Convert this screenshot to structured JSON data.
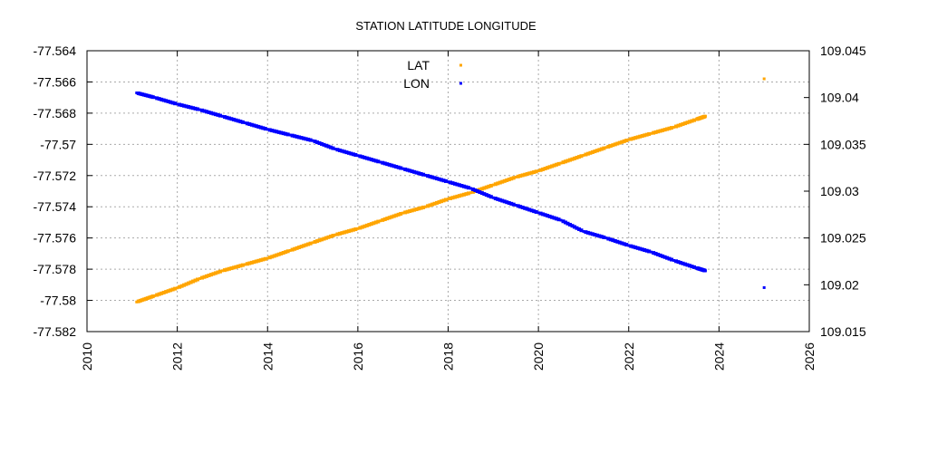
{
  "chart_data": {
    "type": "scatter",
    "title": "STATION LATITUDE LONGITUDE",
    "xlim": [
      2010,
      2026
    ],
    "x_ticks": [
      "2010",
      "2012",
      "2014",
      "2016",
      "2018",
      "2020",
      "2022",
      "2024",
      "2026"
    ],
    "y_left_lim": [
      -77.582,
      -77.564
    ],
    "y_left_ticks": [
      "-77.564",
      "-77.566",
      "-77.568",
      "-77.57",
      "-77.572",
      "-77.574",
      "-77.576",
      "-77.578",
      "-77.58",
      "-77.582"
    ],
    "y_right_lim": [
      109.015,
      109.045
    ],
    "y_right_ticks": [
      "109.045",
      "109.04",
      "109.035",
      "109.03",
      "109.025",
      "109.02",
      "109.015"
    ],
    "grid": true,
    "legend_position": "top-center",
    "series": [
      {
        "name": "LAT",
        "axis": "left",
        "color": "#FFA500",
        "points": [
          [
            2011.1,
            -77.5801
          ],
          [
            2011.5,
            -77.5797
          ],
          [
            2012.0,
            -77.5792
          ],
          [
            2012.5,
            -77.5786
          ],
          [
            2013.0,
            -77.5781
          ],
          [
            2013.5,
            -77.5777
          ],
          [
            2014.0,
            -77.5773
          ],
          [
            2014.5,
            -77.5768
          ],
          [
            2015.0,
            -77.5763
          ],
          [
            2015.5,
            -77.5758
          ],
          [
            2016.0,
            -77.5754
          ],
          [
            2016.5,
            -77.5749
          ],
          [
            2017.0,
            -77.5744
          ],
          [
            2017.5,
            -77.574
          ],
          [
            2018.0,
            -77.5735
          ],
          [
            2018.5,
            -77.5731
          ],
          [
            2019.0,
            -77.5726
          ],
          [
            2019.5,
            -77.5721
          ],
          [
            2020.0,
            -77.5717
          ],
          [
            2020.5,
            -77.5712
          ],
          [
            2021.0,
            -77.5707
          ],
          [
            2021.5,
            -77.5702
          ],
          [
            2022.0,
            -77.5697
          ],
          [
            2022.5,
            -77.5693
          ],
          [
            2023.0,
            -77.5689
          ],
          [
            2023.5,
            -77.5684
          ],
          [
            2023.7,
            -77.5682
          ],
          [
            2025.0,
            -77.5658
          ]
        ]
      },
      {
        "name": "LON",
        "axis": "right",
        "color": "#0000FF",
        "points": [
          [
            2011.1,
            109.0405
          ],
          [
            2011.5,
            109.04
          ],
          [
            2012.0,
            109.0393
          ],
          [
            2012.5,
            109.0387
          ],
          [
            2013.0,
            109.038
          ],
          [
            2013.5,
            109.0373
          ],
          [
            2014.0,
            109.0366
          ],
          [
            2014.5,
            109.036
          ],
          [
            2015.0,
            109.0354
          ],
          [
            2015.5,
            109.0345
          ],
          [
            2016.0,
            109.0338
          ],
          [
            2016.5,
            109.0331
          ],
          [
            2017.0,
            109.0324
          ],
          [
            2017.5,
            109.0317
          ],
          [
            2018.0,
            109.031
          ],
          [
            2018.5,
            109.0303
          ],
          [
            2019.0,
            109.0293
          ],
          [
            2019.5,
            109.0285
          ],
          [
            2020.0,
            109.0277
          ],
          [
            2020.5,
            109.0269
          ],
          [
            2021.0,
            109.0257
          ],
          [
            2021.5,
            109.025
          ],
          [
            2022.0,
            109.0242
          ],
          [
            2022.5,
            109.0235
          ],
          [
            2023.0,
            109.0226
          ],
          [
            2023.5,
            109.0218
          ],
          [
            2023.7,
            109.0215
          ],
          [
            2025.0,
            109.0197
          ]
        ]
      }
    ]
  }
}
